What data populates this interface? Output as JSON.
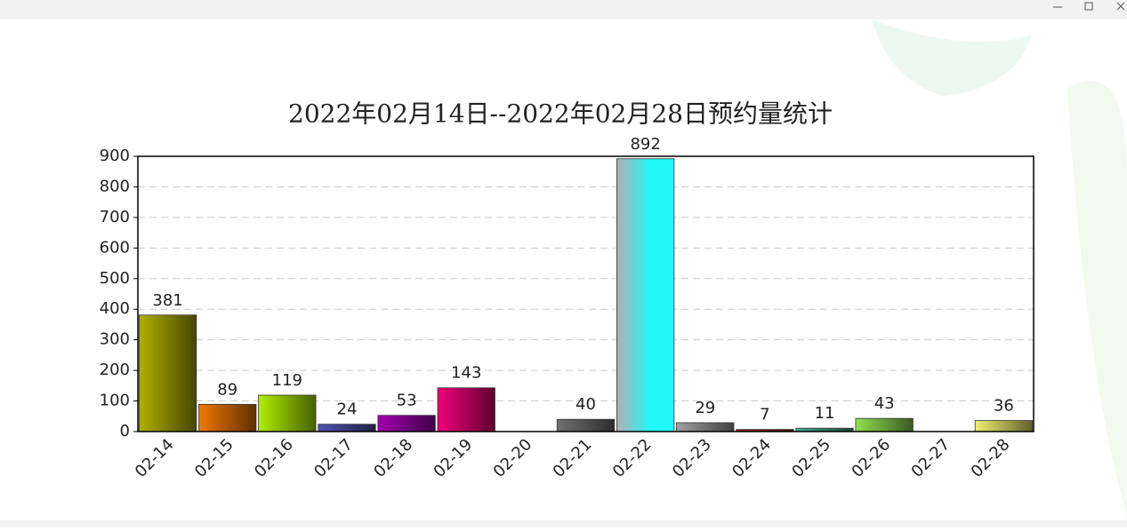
{
  "chart_data": {
    "type": "bar",
    "title": "2022年02月14日--2022年02月28日预约量统计",
    "categories": [
      "02-14",
      "02-15",
      "02-16",
      "02-17",
      "02-18",
      "02-19",
      "02-20",
      "02-21",
      "02-22",
      "02-23",
      "02-24",
      "02-25",
      "02-26",
      "02-27",
      "02-28"
    ],
    "values": [
      381,
      89,
      119,
      24,
      53,
      143,
      null,
      40,
      892,
      29,
      7,
      11,
      43,
      null,
      36
    ],
    "colors": [
      "#b0b000",
      "#f07800",
      "#b0f000",
      "#5050b0",
      "#a000b0",
      "#f00078",
      null,
      "#707070",
      "#20f8f8",
      "#a0a0a0",
      "#a02828",
      "#40b090",
      "#90e050",
      null,
      "#f0f070"
    ],
    "ylim": [
      0,
      900
    ],
    "yticks": [
      0,
      100,
      200,
      300,
      400,
      500,
      600,
      700,
      800,
      900
    ],
    "grid": true
  }
}
